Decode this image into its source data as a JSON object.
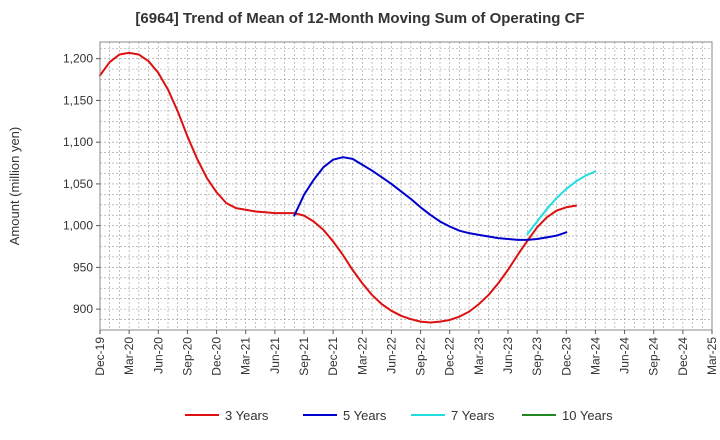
{
  "chart_data": {
    "type": "line",
    "title": "[6964]  Trend of Mean of 12-Month Moving Sum of Operating CF",
    "xlabel": "",
    "ylabel": "Amount (million yen)",
    "ylim": [
      875,
      1220
    ],
    "yticks": [
      900,
      950,
      1000,
      1050,
      1100,
      1150,
      1200
    ],
    "ytick_labels": [
      "900",
      "950",
      "1,000",
      "1,050",
      "1,100",
      "1,150",
      "1,200"
    ],
    "x_start": "Dec-19",
    "x_months_total": 63,
    "xtick_labels": [
      "Dec-19",
      "Mar-20",
      "Jun-20",
      "Sep-20",
      "Dec-20",
      "Mar-21",
      "Jun-21",
      "Sep-21",
      "Dec-21",
      "Mar-22",
      "Jun-22",
      "Sep-22",
      "Dec-22",
      "Mar-23",
      "Jun-23",
      "Sep-23",
      "Dec-23",
      "Mar-24",
      "Jun-24",
      "Sep-24",
      "Dec-24",
      "Mar-25"
    ],
    "grid": true,
    "legend": "bottom",
    "series": [
      {
        "name": "3 Years",
        "color": "#dd1111",
        "start_index": 0,
        "values": [
          1180,
          1196,
          1205,
          1207,
          1205,
          1197,
          1183,
          1163,
          1137,
          1107,
          1080,
          1057,
          1040,
          1027,
          1021,
          1019,
          1017,
          1016,
          1015,
          1015,
          1015,
          1012,
          1005,
          995,
          981,
          965,
          947,
          931,
          917,
          906,
          898,
          892,
          888,
          885,
          884,
          885,
          887,
          891,
          897,
          906,
          917,
          931,
          947,
          965,
          982,
          998,
          1010,
          1018,
          1022,
          1024
        ]
      },
      {
        "name": "5 Years",
        "color": "#0000cc",
        "start_index": 20,
        "values": [
          1012,
          1037,
          1055,
          1070,
          1079,
          1082,
          1080,
          1073,
          1066,
          1058,
          1050,
          1041,
          1032,
          1022,
          1013,
          1005,
          999,
          994,
          991,
          989,
          987,
          985,
          984,
          983,
          983,
          984,
          986,
          988,
          992
        ]
      },
      {
        "name": "7 Years",
        "color": "#22dddd",
        "start_index": 44,
        "values": [
          990,
          1005,
          1020,
          1033,
          1044,
          1053,
          1060,
          1065
        ]
      },
      {
        "name": "10 Years",
        "color": "#228822",
        "start_index": 0,
        "values": []
      }
    ]
  }
}
